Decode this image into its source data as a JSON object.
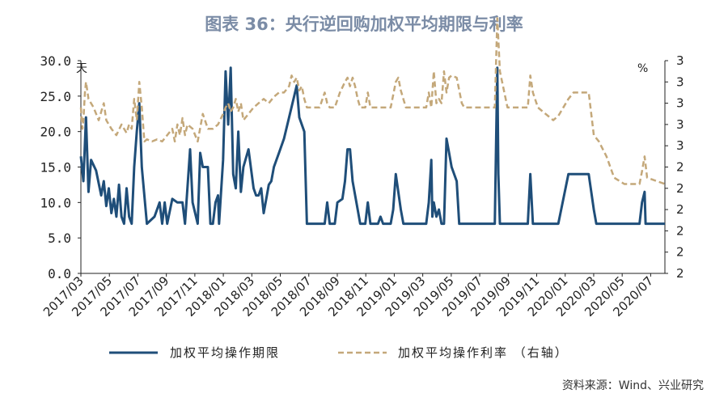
{
  "title": "图表 36：央行逆回购加权平均期限与利率",
  "source": "资料来源：Wind、兴业研究",
  "colors": {
    "term": "#1f4e79",
    "rate": "#c4a87a",
    "title": "#7b8ca6",
    "axis": "#222222"
  },
  "chart_data": {
    "type": "line",
    "left_unit": "天",
    "right_unit": "%",
    "y_left": {
      "ticks": [
        "30.0",
        "25.0",
        "20.0",
        "15.0",
        "10.0",
        "5.0",
        "0.0"
      ],
      "range": [
        0,
        30
      ]
    },
    "y_right": {
      "ticks": [
        "3",
        "3",
        "3",
        "3",
        "3",
        "2",
        "2",
        "2",
        "2",
        "2",
        "2"
      ],
      "range": [
        2.0,
        3.0
      ]
    },
    "x_labels": [
      "2017/03",
      "2017/05",
      "2017/07",
      "2017/09",
      "2017/11",
      "2018/01",
      "2018/03",
      "2018/05",
      "2018/07",
      "2018/09",
      "2018/11",
      "2019/01",
      "2019/03",
      "2019/05",
      "2019/07",
      "2019/09",
      "2019/11",
      "2020/01",
      "2020/03",
      "2020/05",
      "2020/07"
    ],
    "x_range": [
      "2017/03",
      "2020/08"
    ],
    "series": [
      {
        "name": "加权平均操作期限",
        "axis": "left",
        "points": [
          [
            0.0,
            16.5
          ],
          [
            0.05,
            13.0
          ],
          [
            0.1,
            22.0
          ],
          [
            0.15,
            11.5
          ],
          [
            0.2,
            16.0
          ],
          [
            0.3,
            14.5
          ],
          [
            0.4,
            11.0
          ],
          [
            0.45,
            13.0
          ],
          [
            0.5,
            9.5
          ],
          [
            0.55,
            12.0
          ],
          [
            0.6,
            8.5
          ],
          [
            0.65,
            10.5
          ],
          [
            0.7,
            8.0
          ],
          [
            0.75,
            12.5
          ],
          [
            0.8,
            8.0
          ],
          [
            0.85,
            7.0
          ],
          [
            0.9,
            12.0
          ],
          [
            0.95,
            8.0
          ],
          [
            1.0,
            7.0
          ],
          [
            1.05,
            15.0
          ],
          [
            1.1,
            20.0
          ],
          [
            1.15,
            24.0
          ],
          [
            1.2,
            15.0
          ],
          [
            1.3,
            7.0
          ],
          [
            1.45,
            8.0
          ],
          [
            1.55,
            10.0
          ],
          [
            1.6,
            7.0
          ],
          [
            1.65,
            10.0
          ],
          [
            1.7,
            7.0
          ],
          [
            1.8,
            10.5
          ],
          [
            1.9,
            10.0
          ],
          [
            2.0,
            10.0
          ],
          [
            2.05,
            7.0
          ],
          [
            2.15,
            17.5
          ],
          [
            2.2,
            10.0
          ],
          [
            2.3,
            7.0
          ],
          [
            2.35,
            17.0
          ],
          [
            2.4,
            15.0
          ],
          [
            2.5,
            15.0
          ],
          [
            2.55,
            7.0
          ],
          [
            2.6,
            7.0
          ],
          [
            2.65,
            10.0
          ],
          [
            2.7,
            11.0
          ],
          [
            2.72,
            7.0
          ],
          [
            2.8,
            16.0
          ],
          [
            2.85,
            28.5
          ],
          [
            2.9,
            21.0
          ],
          [
            2.95,
            29.0
          ],
          [
            3.0,
            14.0
          ],
          [
            3.05,
            12.0
          ],
          [
            3.1,
            20.0
          ],
          [
            3.15,
            11.5
          ],
          [
            3.2,
            15.0
          ],
          [
            3.3,
            17.5
          ],
          [
            3.4,
            12.0
          ],
          [
            3.45,
            11.0
          ],
          [
            3.5,
            11.0
          ],
          [
            3.55,
            12.0
          ],
          [
            3.6,
            8.5
          ],
          [
            3.7,
            12.5
          ],
          [
            3.75,
            13.0
          ],
          [
            3.8,
            15.0
          ],
          [
            3.9,
            17.0
          ],
          [
            4.0,
            19.0
          ],
          [
            4.1,
            22.0
          ],
          [
            4.2,
            25.0
          ],
          [
            4.25,
            26.5
          ],
          [
            4.3,
            22.0
          ],
          [
            4.4,
            20.0
          ],
          [
            4.45,
            7.0
          ],
          [
            4.6,
            7.0
          ],
          [
            4.8,
            7.0
          ],
          [
            4.85,
            10.0
          ],
          [
            4.9,
            7.0
          ],
          [
            5.0,
            7.0
          ],
          [
            5.05,
            10.0
          ],
          [
            5.15,
            10.5
          ],
          [
            5.2,
            13.0
          ],
          [
            5.25,
            17.5
          ],
          [
            5.3,
            17.5
          ],
          [
            5.35,
            13.0
          ],
          [
            5.45,
            9.0
          ],
          [
            5.5,
            7.0
          ],
          [
            5.6,
            7.0
          ],
          [
            5.65,
            10.0
          ],
          [
            5.7,
            7.0
          ],
          [
            5.85,
            7.0
          ],
          [
            5.9,
            8.0
          ],
          [
            5.95,
            7.0
          ],
          [
            6.0,
            7.0
          ],
          [
            6.1,
            7.0
          ],
          [
            6.15,
            9.0
          ],
          [
            6.2,
            14.0
          ],
          [
            6.3,
            9.0
          ],
          [
            6.35,
            7.0
          ],
          [
            6.8,
            7.0
          ],
          [
            6.85,
            10.0
          ],
          [
            6.9,
            16.0
          ],
          [
            6.92,
            8.0
          ],
          [
            6.95,
            10.0
          ],
          [
            7.0,
            8.0
          ],
          [
            7.05,
            9.0
          ],
          [
            7.1,
            7.0
          ],
          [
            7.15,
            7.0
          ],
          [
            7.2,
            19.0
          ],
          [
            7.25,
            17.0
          ],
          [
            7.3,
            15.0
          ],
          [
            7.4,
            13.0
          ],
          [
            7.45,
            7.0
          ],
          [
            7.9,
            7.0
          ],
          [
            8.0,
            7.0
          ],
          [
            8.15,
            7.0
          ],
          [
            8.2,
            29.0
          ],
          [
            8.22,
            14.0
          ],
          [
            8.25,
            7.0
          ],
          [
            8.8,
            7.0
          ],
          [
            8.85,
            14.0
          ],
          [
            8.9,
            7.0
          ],
          [
            9.4,
            7.0
          ],
          [
            9.6,
            14.0
          ],
          [
            9.7,
            14.0
          ],
          [
            9.9,
            14.0
          ],
          [
            10.0,
            14.0
          ],
          [
            10.1,
            9.0
          ],
          [
            10.15,
            7.0
          ],
          [
            10.5,
            7.0
          ],
          [
            10.9,
            7.0
          ],
          [
            11.0,
            7.0
          ],
          [
            11.05,
            10.0
          ],
          [
            11.1,
            11.5
          ],
          [
            11.12,
            7.0
          ],
          [
            11.5,
            7.0
          ]
        ]
      },
      {
        "name": "加权平均操作利率 （右轴）",
        "axis": "right",
        "points": [
          [
            0.0,
            2.78
          ],
          [
            0.03,
            2.68
          ],
          [
            0.05,
            2.72
          ],
          [
            0.08,
            2.85
          ],
          [
            0.1,
            2.9
          ],
          [
            0.15,
            2.82
          ],
          [
            0.25,
            2.78
          ],
          [
            0.35,
            2.72
          ],
          [
            0.45,
            2.8
          ],
          [
            0.5,
            2.72
          ],
          [
            0.6,
            2.68
          ],
          [
            0.7,
            2.65
          ],
          [
            0.8,
            2.7
          ],
          [
            0.9,
            2.66
          ],
          [
            0.95,
            2.7
          ],
          [
            1.0,
            2.68
          ],
          [
            1.05,
            2.82
          ],
          [
            1.1,
            2.72
          ],
          [
            1.15,
            2.9
          ],
          [
            1.2,
            2.78
          ],
          [
            1.25,
            2.62
          ],
          [
            1.3,
            2.63
          ],
          [
            1.4,
            2.62
          ],
          [
            1.5,
            2.63
          ],
          [
            1.6,
            2.62
          ],
          [
            1.7,
            2.65
          ],
          [
            1.8,
            2.68
          ],
          [
            1.85,
            2.62
          ],
          [
            1.9,
            2.7
          ],
          [
            1.95,
            2.65
          ],
          [
            2.0,
            2.73
          ],
          [
            2.05,
            2.65
          ],
          [
            2.1,
            2.7
          ],
          [
            2.2,
            2.68
          ],
          [
            2.3,
            2.62
          ],
          [
            2.4,
            2.75
          ],
          [
            2.5,
            2.68
          ],
          [
            2.6,
            2.68
          ],
          [
            2.7,
            2.7
          ],
          [
            2.8,
            2.75
          ],
          [
            2.85,
            2.78
          ],
          [
            2.9,
            2.8
          ],
          [
            2.95,
            2.76
          ],
          [
            3.0,
            2.78
          ],
          [
            3.05,
            2.82
          ],
          [
            3.1,
            2.76
          ],
          [
            3.15,
            2.8
          ],
          [
            3.2,
            2.72
          ],
          [
            3.3,
            2.75
          ],
          [
            3.4,
            2.78
          ],
          [
            3.5,
            2.8
          ],
          [
            3.6,
            2.82
          ],
          [
            3.7,
            2.8
          ],
          [
            3.8,
            2.83
          ],
          [
            3.9,
            2.85
          ],
          [
            4.0,
            2.85
          ],
          [
            4.1,
            2.88
          ],
          [
            4.15,
            2.93
          ],
          [
            4.2,
            2.9
          ],
          [
            4.25,
            2.92
          ],
          [
            4.3,
            2.86
          ],
          [
            4.35,
            2.88
          ],
          [
            4.4,
            2.82
          ],
          [
            4.45,
            2.78
          ],
          [
            4.7,
            2.78
          ],
          [
            4.8,
            2.85
          ],
          [
            4.85,
            2.8
          ],
          [
            4.9,
            2.78
          ],
          [
            5.0,
            2.78
          ],
          [
            5.1,
            2.85
          ],
          [
            5.2,
            2.9
          ],
          [
            5.25,
            2.92
          ],
          [
            5.3,
            2.88
          ],
          [
            5.35,
            2.92
          ],
          [
            5.4,
            2.88
          ],
          [
            5.45,
            2.82
          ],
          [
            5.5,
            2.78
          ],
          [
            5.6,
            2.78
          ],
          [
            5.65,
            2.85
          ],
          [
            5.7,
            2.78
          ],
          [
            5.9,
            2.78
          ],
          [
            6.0,
            2.78
          ],
          [
            6.1,
            2.78
          ],
          [
            6.2,
            2.9
          ],
          [
            6.25,
            2.92
          ],
          [
            6.3,
            2.86
          ],
          [
            6.4,
            2.78
          ],
          [
            6.5,
            2.78
          ],
          [
            6.8,
            2.78
          ],
          [
            6.85,
            2.85
          ],
          [
            6.9,
            2.78
          ],
          [
            6.95,
            2.95
          ],
          [
            7.0,
            2.8
          ],
          [
            7.05,
            2.82
          ],
          [
            7.1,
            2.8
          ],
          [
            7.15,
            2.95
          ],
          [
            7.2,
            2.85
          ],
          [
            7.25,
            2.92
          ],
          [
            7.3,
            2.93
          ],
          [
            7.4,
            2.92
          ],
          [
            7.5,
            2.8
          ],
          [
            7.55,
            2.78
          ],
          [
            7.9,
            2.78
          ],
          [
            8.0,
            2.78
          ],
          [
            8.15,
            2.78
          ],
          [
            8.2,
            3.2
          ],
          [
            8.25,
            2.95
          ],
          [
            8.4,
            2.78
          ],
          [
            8.5,
            2.78
          ],
          [
            8.8,
            2.78
          ],
          [
            8.85,
            2.93
          ],
          [
            8.9,
            2.85
          ],
          [
            9.0,
            2.78
          ],
          [
            9.3,
            2.72
          ],
          [
            9.4,
            2.74
          ],
          [
            9.6,
            2.82
          ],
          [
            9.7,
            2.85
          ],
          [
            9.9,
            2.85
          ],
          [
            10.0,
            2.85
          ],
          [
            10.1,
            2.65
          ],
          [
            10.2,
            2.62
          ],
          [
            10.35,
            2.55
          ],
          [
            10.5,
            2.45
          ],
          [
            10.7,
            2.42
          ],
          [
            10.9,
            2.42
          ],
          [
            11.0,
            2.42
          ],
          [
            11.05,
            2.48
          ],
          [
            11.1,
            2.55
          ],
          [
            11.15,
            2.45
          ],
          [
            11.5,
            2.42
          ]
        ]
      }
    ]
  }
}
